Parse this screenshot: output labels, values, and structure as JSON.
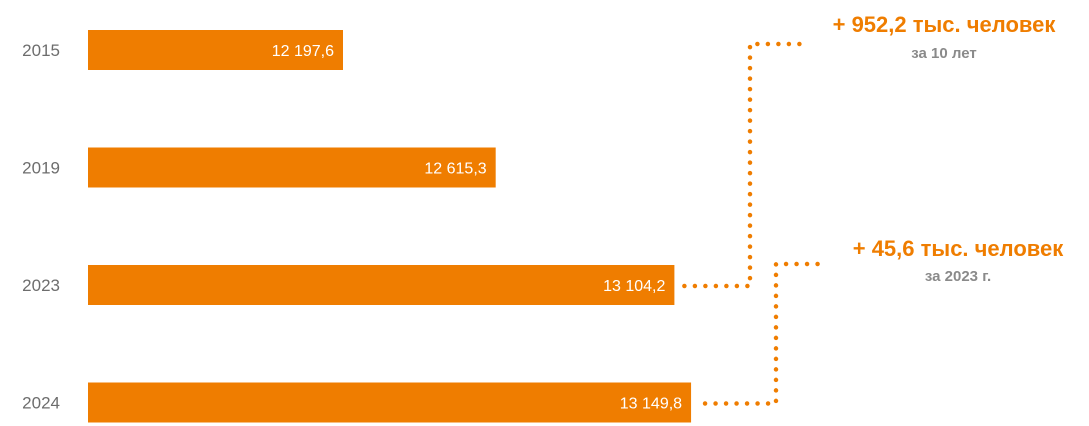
{
  "chart_data": {
    "type": "bar",
    "orientation": "horizontal",
    "categories": [
      "2015",
      "2019",
      "2023",
      "2024"
    ],
    "values": [
      12197.6,
      12615.3,
      13104.2,
      13149.8
    ],
    "value_labels": [
      "12 197,6",
      "12 615,3",
      "13 104,2",
      "13 149,8"
    ],
    "axis_baseline": 11500,
    "grid": false,
    "annotations": [
      {
        "main": "+ 952,2 тыс. человек",
        "sub": "за 10 лет",
        "from": "2015",
        "to": "2023"
      },
      {
        "main": "+ 45,6 тыс. человек",
        "sub": "за 2023 г.",
        "from": "2023",
        "to": "2024"
      }
    ]
  },
  "colors": {
    "bar": "#ef7d00",
    "accent": "#ef7d00",
    "year_text": "#6d6d6d",
    "sub_text": "#8a8a8a"
  }
}
